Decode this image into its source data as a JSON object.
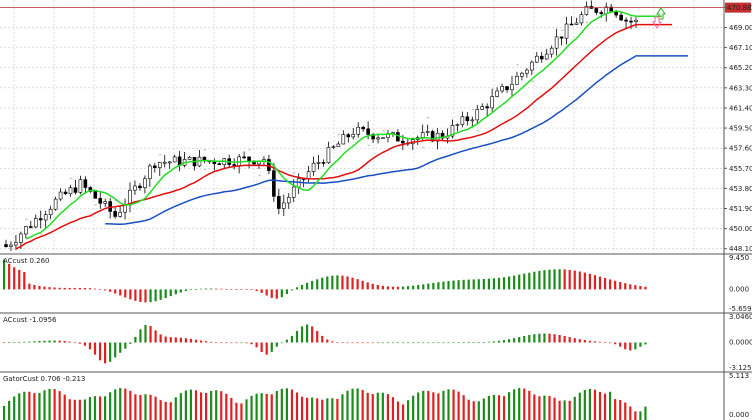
{
  "colors": {
    "bull_bar": "#1b8c1b",
    "bear_bar": "#e02020",
    "ma_fast": "#22dd22",
    "ma_mid": "#e01010",
    "ma_slow": "#1a4fc0",
    "grid": "#c9c9c9",
    "price_line": "#c03030",
    "price_badge": "#c03030",
    "candle": "#000000"
  },
  "price_pane": {
    "axis_ticks": [
      "470.90",
      "469.00",
      "467.10",
      "465.20",
      "463.30",
      "461.40",
      "459.50",
      "457.60",
      "455.70",
      "453.80",
      "451.90",
      "450.00",
      "448.10"
    ],
    "current_price_badge": "470.88"
  },
  "panes": [
    {
      "label": "ACcust 0.260",
      "axis_ticks": [
        "9.450",
        "0.000",
        "-5.659"
      ]
    },
    {
      "label": "ACcust -1.0956",
      "axis_ticks": [
        "3.0460",
        "0.0000",
        "-3.1250"
      ]
    },
    {
      "label": "GatorCust 0.706 -0.213",
      "axis_ticks": [
        "5.113",
        "0.000"
      ]
    }
  ],
  "chart_data": {
    "type": "candlestick",
    "y_range": [
      447.6,
      471.6
    ],
    "current_price": 470.88,
    "series": [
      {
        "name": "",
        "kind": "candles",
        "count": 115,
        "start_close": 448.5,
        "end_close": 470.4
      },
      {
        "name": "",
        "kind": "moving-average",
        "color_key": "ma_fast"
      },
      {
        "name": "",
        "kind": "moving-average",
        "color_key": "ma_mid"
      },
      {
        "name": "",
        "kind": "moving-average",
        "color_key": "ma_slow"
      }
    ],
    "oscillators": [
      {
        "label": "ACcust 0.260",
        "range": [
          -5.659,
          9.45
        ]
      },
      {
        "label": "ACcust -1.0956",
        "range": [
          -3.125,
          3.046
        ]
      },
      {
        "label": "GatorCust 0.706 -0.213",
        "range": [
          0,
          5.113
        ]
      }
    ]
  }
}
